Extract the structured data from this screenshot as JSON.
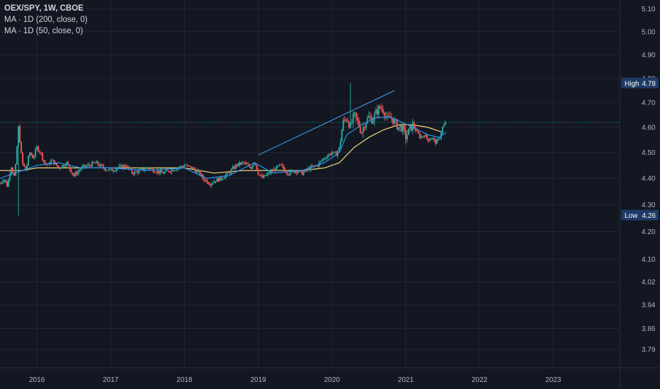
{
  "legend": {
    "title": "OEX/SPY, 1W, CBOE",
    "ma200": "MA · 1D (200, close, 0)",
    "ma50": "MA · 1D (50, close, 0)"
  },
  "badges": {
    "high_label": "High",
    "high_value": "4.78",
    "low_label": "Low",
    "low_value": "4.26"
  },
  "colors": {
    "background": "#131722",
    "grid": "#232733",
    "up": "#26a69a",
    "down": "#ef5350",
    "ma_fast": "#2196f3",
    "ma_slow": "#f0d77a",
    "trendline": "#3d8fd1",
    "badge": "#1e3a66"
  },
  "chart_data": {
    "type": "candlestick",
    "symbol": "OEX/SPY",
    "interval": "1W",
    "exchange": "CBOE",
    "y_scale": "log",
    "y_ticks": [
      3.79,
      3.86,
      3.94,
      4.02,
      4.1,
      4.2,
      4.3,
      4.4,
      4.5,
      4.6,
      4.7,
      4.8,
      4.9,
      5.0,
      5.1
    ],
    "x_ticks": [
      "2016",
      "2017",
      "2018",
      "2019",
      "2020",
      "2021",
      "2022",
      "2023"
    ],
    "x_range": [
      2015.5,
      2023.9
    ],
    "y_range": [
      3.73,
      5.14
    ],
    "high": 4.78,
    "low": 4.26,
    "last": 4.62,
    "grid": true,
    "series": [
      {
        "name": "OEX/SPY",
        "role": "price",
        "points": [
          [
            2015.5,
            4.38
          ],
          [
            2015.55,
            4.4
          ],
          [
            2015.6,
            4.37
          ],
          [
            2015.65,
            4.45
          ],
          [
            2015.7,
            4.4
          ],
          [
            2015.75,
            4.6
          ],
          [
            2015.8,
            4.46
          ],
          [
            2015.85,
            4.43
          ],
          [
            2015.9,
            4.5
          ],
          [
            2015.95,
            4.48
          ],
          [
            2016.0,
            4.52
          ],
          [
            2016.05,
            4.5
          ],
          [
            2016.1,
            4.46
          ],
          [
            2016.15,
            4.45
          ],
          [
            2016.2,
            4.47
          ],
          [
            2016.3,
            4.44
          ],
          [
            2016.4,
            4.46
          ],
          [
            2016.5,
            4.41
          ],
          [
            2016.6,
            4.44
          ],
          [
            2016.7,
            4.45
          ],
          [
            2016.8,
            4.46
          ],
          [
            2016.9,
            4.44
          ],
          [
            2017.0,
            4.43
          ],
          [
            2017.1,
            4.44
          ],
          [
            2017.2,
            4.45
          ],
          [
            2017.3,
            4.42
          ],
          [
            2017.4,
            4.43
          ],
          [
            2017.5,
            4.44
          ],
          [
            2017.6,
            4.43
          ],
          [
            2017.7,
            4.42
          ],
          [
            2017.8,
            4.43
          ],
          [
            2017.9,
            4.44
          ],
          [
            2018.0,
            4.45
          ],
          [
            2018.1,
            4.44
          ],
          [
            2018.2,
            4.42
          ],
          [
            2018.25,
            4.4
          ],
          [
            2018.3,
            4.39
          ],
          [
            2018.35,
            4.38
          ],
          [
            2018.4,
            4.39
          ],
          [
            2018.5,
            4.4
          ],
          [
            2018.6,
            4.42
          ],
          [
            2018.7,
            4.45
          ],
          [
            2018.8,
            4.46
          ],
          [
            2018.9,
            4.44
          ],
          [
            2018.95,
            4.47
          ],
          [
            2019.0,
            4.42
          ],
          [
            2019.05,
            4.4
          ],
          [
            2019.1,
            4.41
          ],
          [
            2019.2,
            4.43
          ],
          [
            2019.3,
            4.45
          ],
          [
            2019.4,
            4.42
          ],
          [
            2019.5,
            4.43
          ],
          [
            2019.6,
            4.42
          ],
          [
            2019.7,
            4.44
          ],
          [
            2019.8,
            4.45
          ],
          [
            2019.9,
            4.48
          ],
          [
            2020.0,
            4.5
          ],
          [
            2020.05,
            4.49
          ],
          [
            2020.1,
            4.52
          ],
          [
            2020.15,
            4.62
          ],
          [
            2020.2,
            4.64
          ],
          [
            2020.25,
            4.6
          ],
          [
            2020.3,
            4.65
          ],
          [
            2020.35,
            4.62
          ],
          [
            2020.4,
            4.58
          ],
          [
            2020.45,
            4.62
          ],
          [
            2020.5,
            4.64
          ],
          [
            2020.55,
            4.63
          ],
          [
            2020.6,
            4.66
          ],
          [
            2020.65,
            4.68
          ],
          [
            2020.7,
            4.67
          ],
          [
            2020.75,
            4.63
          ],
          [
            2020.8,
            4.64
          ],
          [
            2020.85,
            4.62
          ],
          [
            2020.9,
            4.6
          ],
          [
            2020.95,
            4.6
          ],
          [
            2021.0,
            4.56
          ],
          [
            2021.05,
            4.59
          ],
          [
            2021.1,
            4.61
          ],
          [
            2021.15,
            4.58
          ],
          [
            2021.2,
            4.56
          ],
          [
            2021.25,
            4.57
          ],
          [
            2021.3,
            4.55
          ],
          [
            2021.35,
            4.56
          ],
          [
            2021.4,
            4.54
          ],
          [
            2021.45,
            4.55
          ],
          [
            2021.5,
            4.6
          ],
          [
            2021.55,
            4.62
          ]
        ]
      },
      {
        "name": "MA · 1D (50, close, 0)",
        "role": "ma_fast",
        "points": [
          [
            2015.5,
            4.4
          ],
          [
            2016.0,
            4.45
          ],
          [
            2016.3,
            4.46
          ],
          [
            2016.6,
            4.44
          ],
          [
            2017.0,
            4.44
          ],
          [
            2017.5,
            4.43
          ],
          [
            2018.0,
            4.44
          ],
          [
            2018.3,
            4.4
          ],
          [
            2018.6,
            4.41
          ],
          [
            2018.95,
            4.46
          ],
          [
            2019.2,
            4.42
          ],
          [
            2019.6,
            4.43
          ],
          [
            2019.9,
            4.46
          ],
          [
            2020.1,
            4.5
          ],
          [
            2020.2,
            4.57
          ],
          [
            2020.4,
            4.61
          ],
          [
            2020.6,
            4.64
          ],
          [
            2020.8,
            4.64
          ],
          [
            2020.95,
            4.62
          ],
          [
            2021.1,
            4.6
          ],
          [
            2021.3,
            4.57
          ],
          [
            2021.45,
            4.56
          ],
          [
            2021.55,
            4.58
          ]
        ]
      },
      {
        "name": "MA · 1D (200, close, 0)",
        "role": "ma_slow",
        "points": [
          [
            2015.5,
            4.43
          ],
          [
            2015.8,
            4.43
          ],
          [
            2016.0,
            4.44
          ],
          [
            2016.5,
            4.44
          ],
          [
            2017.0,
            4.44
          ],
          [
            2017.5,
            4.44
          ],
          [
            2018.0,
            4.44
          ],
          [
            2018.4,
            4.42
          ],
          [
            2018.8,
            4.43
          ],
          [
            2019.2,
            4.43
          ],
          [
            2019.6,
            4.43
          ],
          [
            2019.9,
            4.44
          ],
          [
            2020.1,
            4.46
          ],
          [
            2020.3,
            4.52
          ],
          [
            2020.5,
            4.56
          ],
          [
            2020.7,
            4.59
          ],
          [
            2020.9,
            4.61
          ],
          [
            2021.1,
            4.61
          ],
          [
            2021.3,
            4.6
          ],
          [
            2021.5,
            4.58
          ]
        ]
      }
    ],
    "trendline": [
      [
        2019.0,
        4.49
      ],
      [
        2020.85,
        4.75
      ]
    ]
  }
}
